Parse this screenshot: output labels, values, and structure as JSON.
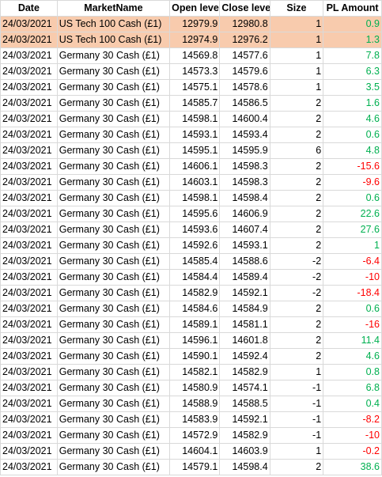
{
  "columns": [
    "Date",
    "MarketName",
    "Open leve",
    "Close leve",
    "Size",
    "PL Amount"
  ],
  "colors": {
    "highlight": "#f8cbad",
    "positive": "#00b050",
    "negative": "#ff0000",
    "grid": "#d9d9d9"
  },
  "rows": [
    {
      "date": "24/03/2021",
      "market": "US Tech 100 Cash (£1)",
      "open": "12979.9",
      "close": "12980.8",
      "size": "1",
      "pl": "0.9",
      "highlight": true
    },
    {
      "date": "24/03/2021",
      "market": "US Tech 100 Cash (£1)",
      "open": "12974.9",
      "close": "12976.2",
      "size": "1",
      "pl": "1.3",
      "highlight": true
    },
    {
      "date": "24/03/2021",
      "market": "Germany 30 Cash (£1)",
      "open": "14569.8",
      "close": "14577.6",
      "size": "1",
      "pl": "7.8"
    },
    {
      "date": "24/03/2021",
      "market": "Germany 30 Cash (£1)",
      "open": "14573.3",
      "close": "14579.6",
      "size": "1",
      "pl": "6.3"
    },
    {
      "date": "24/03/2021",
      "market": "Germany 30 Cash (£1)",
      "open": "14575.1",
      "close": "14578.6",
      "size": "1",
      "pl": "3.5"
    },
    {
      "date": "24/03/2021",
      "market": "Germany 30 Cash (£1)",
      "open": "14585.7",
      "close": "14586.5",
      "size": "2",
      "pl": "1.6"
    },
    {
      "date": "24/03/2021",
      "market": "Germany 30 Cash (£1)",
      "open": "14598.1",
      "close": "14600.4",
      "size": "2",
      "pl": "4.6"
    },
    {
      "date": "24/03/2021",
      "market": "Germany 30 Cash (£1)",
      "open": "14593.1",
      "close": "14593.4",
      "size": "2",
      "pl": "0.6"
    },
    {
      "date": "24/03/2021",
      "market": "Germany 30 Cash (£1)",
      "open": "14595.1",
      "close": "14595.9",
      "size": "6",
      "pl": "4.8"
    },
    {
      "date": "24/03/2021",
      "market": "Germany 30 Cash (£1)",
      "open": "14606.1",
      "close": "14598.3",
      "size": "2",
      "pl": "-15.6"
    },
    {
      "date": "24/03/2021",
      "market": "Germany 30 Cash (£1)",
      "open": "14603.1",
      "close": "14598.3",
      "size": "2",
      "pl": "-9.6"
    },
    {
      "date": "24/03/2021",
      "market": "Germany 30 Cash (£1)",
      "open": "14598.1",
      "close": "14598.4",
      "size": "2",
      "pl": "0.6"
    },
    {
      "date": "24/03/2021",
      "market": "Germany 30 Cash (£1)",
      "open": "14595.6",
      "close": "14606.9",
      "size": "2",
      "pl": "22.6"
    },
    {
      "date": "24/03/2021",
      "market": "Germany 30 Cash (£1)",
      "open": "14593.6",
      "close": "14607.4",
      "size": "2",
      "pl": "27.6"
    },
    {
      "date": "24/03/2021",
      "market": "Germany 30 Cash (£1)",
      "open": "14592.6",
      "close": "14593.1",
      "size": "2",
      "pl": "1"
    },
    {
      "date": "24/03/2021",
      "market": "Germany 30 Cash (£1)",
      "open": "14585.4",
      "close": "14588.6",
      "size": "-2",
      "pl": "-6.4"
    },
    {
      "date": "24/03/2021",
      "market": "Germany 30 Cash (£1)",
      "open": "14584.4",
      "close": "14589.4",
      "size": "-2",
      "pl": "-10"
    },
    {
      "date": "24/03/2021",
      "market": "Germany 30 Cash (£1)",
      "open": "14582.9",
      "close": "14592.1",
      "size": "-2",
      "pl": "-18.4"
    },
    {
      "date": "24/03/2021",
      "market": "Germany 30 Cash (£1)",
      "open": "14584.6",
      "close": "14584.9",
      "size": "2",
      "pl": "0.6"
    },
    {
      "date": "24/03/2021",
      "market": "Germany 30 Cash (£1)",
      "open": "14589.1",
      "close": "14581.1",
      "size": "2",
      "pl": "-16"
    },
    {
      "date": "24/03/2021",
      "market": "Germany 30 Cash (£1)",
      "open": "14596.1",
      "close": "14601.8",
      "size": "2",
      "pl": "11.4"
    },
    {
      "date": "24/03/2021",
      "market": "Germany 30 Cash (£1)",
      "open": "14590.1",
      "close": "14592.4",
      "size": "2",
      "pl": "4.6"
    },
    {
      "date": "24/03/2021",
      "market": "Germany 30 Cash (£1)",
      "open": "14582.1",
      "close": "14582.9",
      "size": "1",
      "pl": "0.8"
    },
    {
      "date": "24/03/2021",
      "market": "Germany 30 Cash (£1)",
      "open": "14580.9",
      "close": "14574.1",
      "size": "-1",
      "pl": "6.8"
    },
    {
      "date": "24/03/2021",
      "market": "Germany 30 Cash (£1)",
      "open": "14588.9",
      "close": "14588.5",
      "size": "-1",
      "pl": "0.4"
    },
    {
      "date": "24/03/2021",
      "market": "Germany 30 Cash (£1)",
      "open": "14583.9",
      "close": "14592.1",
      "size": "-1",
      "pl": "-8.2"
    },
    {
      "date": "24/03/2021",
      "market": "Germany 30 Cash (£1)",
      "open": "14572.9",
      "close": "14582.9",
      "size": "-1",
      "pl": "-10"
    },
    {
      "date": "24/03/2021",
      "market": "Germany 30 Cash (£1)",
      "open": "14604.1",
      "close": "14603.9",
      "size": "1",
      "pl": "-0.2"
    },
    {
      "date": "24/03/2021",
      "market": "Germany 30 Cash (£1)",
      "open": "14579.1",
      "close": "14598.4",
      "size": "2",
      "pl": "38.6"
    }
  ]
}
